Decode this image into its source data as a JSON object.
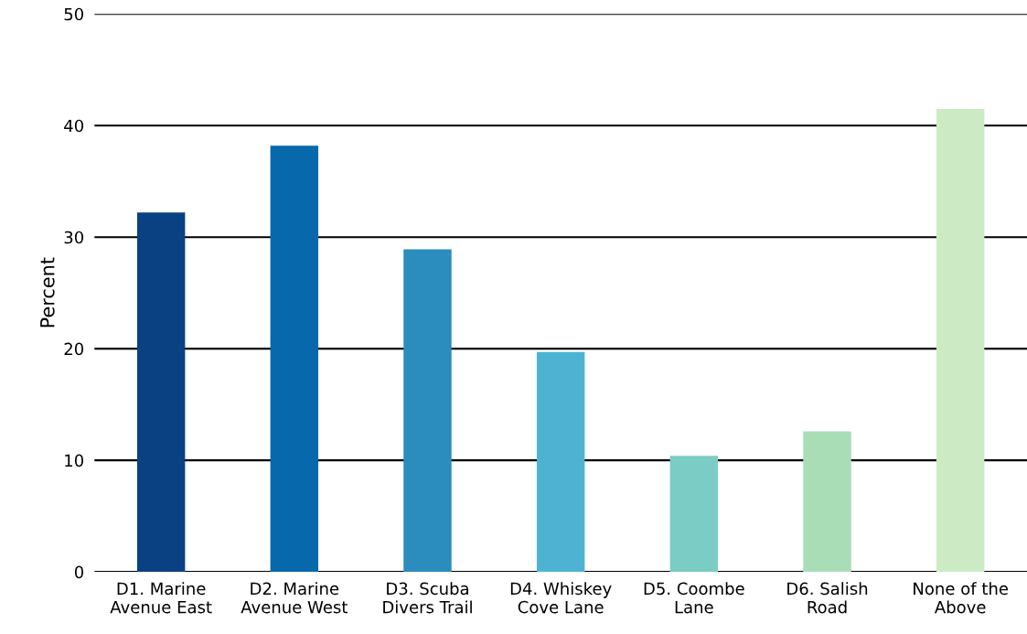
{
  "chart_data": {
    "type": "bar",
    "ylabel": "Percent",
    "categories": [
      "D1. Marine\nAvenue East",
      "D2. Marine\nAvenue West",
      "D3. Scuba\nDivers Trail",
      "D4. Whiskey\nCove Lane",
      "D5. Coombe\nLane",
      "D6. Salish\nRoad",
      "None of the\nAbove"
    ],
    "values": [
      32.2,
      38.2,
      28.9,
      19.7,
      10.4,
      12.6,
      41.5
    ],
    "colors": [
      "#0a4182",
      "#0868ac",
      "#2b8cbe",
      "#4eb3d3",
      "#7bccc4",
      "#a8ddb5",
      "#ccebc5"
    ],
    "ylim": [
      0,
      50
    ],
    "yticks": [
      0,
      10,
      20,
      30,
      40,
      50
    ],
    "grid": "y"
  }
}
